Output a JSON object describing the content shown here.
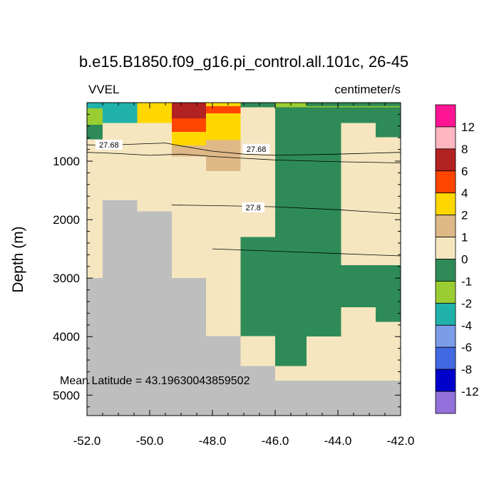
{
  "chart_data": {
    "type": "heatmap",
    "title": "b.e15.B1850.f09_g16.pi_control.all.101c, 26-45",
    "left_label": "VVEL",
    "units": "centimeter/s",
    "xlabel": "",
    "ylabel": "Depth (m)",
    "xlim": [
      -52.0,
      -42.0
    ],
    "ylim": [
      0,
      5350
    ],
    "x_ticks": [
      -52.0,
      -50.0,
      -48.0,
      -46.0,
      -44.0,
      -42.0
    ],
    "x_tick_labels": [
      "-52.0",
      "-50.0",
      "-48.0",
      "-46.0",
      "-44.0",
      "-42.0"
    ],
    "y_ticks": [
      1000,
      2000,
      3000,
      4000,
      5000
    ],
    "y_tick_labels": [
      "1000",
      "2000",
      "3000",
      "4000",
      "5000"
    ],
    "annotation": "Mean Latitude = 43.19630043859502",
    "colorbar": {
      "labels": [
        "12",
        "8",
        "6",
        "4",
        "2",
        "1",
        "0",
        "-1",
        "-2",
        "-4",
        "-6",
        "-8",
        "-12"
      ],
      "colors": [
        "#ff1493",
        "#ffb6c1",
        "#b22222",
        "#ff4500",
        "#ffd700",
        "#deb887",
        "#f5e6c0",
        "#2e8b57",
        "#9acd32",
        "#20b2aa",
        "#7b9ce8",
        "#4169e1",
        "#0000cd",
        "#9370db"
      ]
    },
    "class_colors": {
      "gt12": "#ff1493",
      "8to12": "#ffb6c1",
      "6to8": "#b22222",
      "4to6": "#ff4500",
      "2to4": "#ffd700",
      "1to2": "#deb887",
      "0to1": "#f5e6c0",
      "m1to0": "#2e8b57",
      "m2tom1": "#9acd32",
      "m4tom2": "#20b2aa",
      "land": "#bebebe"
    },
    "cells": [
      {
        "x0": -52.0,
        "x1": -42.0,
        "d0": 0,
        "d1": 5350,
        "c": "0to1"
      },
      {
        "x0": -52.0,
        "x1": -51.5,
        "d0": 0,
        "d1": 100,
        "c": "m4tom2"
      },
      {
        "x0": -52.0,
        "x1": -51.5,
        "d0": 100,
        "d1": 380,
        "c": "m2tom1"
      },
      {
        "x0": -52.0,
        "x1": -51.5,
        "d0": 380,
        "d1": 630,
        "c": "m1to0"
      },
      {
        "x0": -51.5,
        "x1": -50.4,
        "d0": 0,
        "d1": 350,
        "c": "m4tom2"
      },
      {
        "x0": -50.4,
        "x1": -49.3,
        "d0": 0,
        "d1": 350,
        "c": "2to4"
      },
      {
        "x0": -49.3,
        "x1": -48.2,
        "d0": 0,
        "d1": 270,
        "c": "6to8"
      },
      {
        "x0": -49.3,
        "x1": -48.2,
        "d0": 270,
        "d1": 500,
        "c": "4to6"
      },
      {
        "x0": -49.3,
        "x1": -48.2,
        "d0": 500,
        "d1": 730,
        "c": "2to4"
      },
      {
        "x0": -49.3,
        "x1": -48.2,
        "d0": 730,
        "d1": 920,
        "c": "1to2"
      },
      {
        "x0": -48.2,
        "x1": -47.1,
        "d0": 0,
        "d1": 60,
        "c": "2to4"
      },
      {
        "x0": -48.2,
        "x1": -47.1,
        "d0": 60,
        "d1": 180,
        "c": "4to6"
      },
      {
        "x0": -48.2,
        "x1": -47.1,
        "d0": 180,
        "d1": 640,
        "c": "2to4"
      },
      {
        "x0": -48.2,
        "x1": -47.1,
        "d0": 640,
        "d1": 1170,
        "c": "1to2"
      },
      {
        "x0": -47.1,
        "x1": -46.0,
        "d0": 0,
        "d1": 80,
        "c": "m1to0"
      },
      {
        "x0": -46.0,
        "x1": -45.0,
        "d0": 0,
        "d1": 80,
        "c": "m2tom1"
      },
      {
        "x0": -45.0,
        "x1": -42.0,
        "d0": 0,
        "d1": 60,
        "c": "m1to0"
      },
      {
        "x0": -45.0,
        "x1": -42.0,
        "d0": 60,
        "d1": 80,
        "c": "m2tom1"
      },
      {
        "x0": -46.0,
        "x1": -45.0,
        "d0": 80,
        "d1": 4500,
        "c": "m1to0"
      },
      {
        "x0": -45.0,
        "x1": -43.9,
        "d0": 80,
        "d1": 2300,
        "c": "m1to0"
      },
      {
        "x0": -43.9,
        "x1": -42.8,
        "d0": 80,
        "d1": 350,
        "c": "m1to0"
      },
      {
        "x0": -42.8,
        "x1": -42.0,
        "d0": 80,
        "d1": 590,
        "c": "m1to0"
      },
      {
        "x0": -47.1,
        "x1": -46.0,
        "d0": 2300,
        "d1": 3990,
        "c": "m1to0"
      },
      {
        "x0": -45.0,
        "x1": -43.9,
        "d0": 2300,
        "d1": 4000,
        "c": "m1to0"
      },
      {
        "x0": -43.9,
        "x1": -42.0,
        "d0": 2780,
        "d1": 3500,
        "c": "m1to0"
      },
      {
        "x0": -42.8,
        "x1": -42.0,
        "d0": 3500,
        "d1": 3750,
        "c": "m1to0"
      },
      {
        "x0": -52.0,
        "x1": -51.5,
        "d0": 3000,
        "d1": 5350,
        "c": "land"
      },
      {
        "x0": -51.5,
        "x1": -50.4,
        "d0": 1670,
        "d1": 5350,
        "c": "land"
      },
      {
        "x0": -50.4,
        "x1": -49.3,
        "d0": 1860,
        "d1": 5350,
        "c": "land"
      },
      {
        "x0": -49.3,
        "x1": -48.2,
        "d0": 3000,
        "d1": 5350,
        "c": "land"
      },
      {
        "x0": -48.2,
        "x1": -47.1,
        "d0": 3990,
        "d1": 5350,
        "c": "land"
      },
      {
        "x0": -47.1,
        "x1": -46.0,
        "d0": 4500,
        "d1": 5350,
        "c": "land"
      },
      {
        "x0": -46.0,
        "x1": -42.0,
        "d0": 4750,
        "d1": 5350,
        "c": "land"
      }
    ],
    "contours": [
      {
        "level": "27.68",
        "points": [
          [
            -52.0,
            720
          ],
          [
            -51.5,
            730
          ],
          [
            -50.0,
            700
          ],
          [
            -49.5,
            690
          ],
          [
            -49.0,
            740
          ],
          [
            -48.0,
            830
          ],
          [
            -47.0,
            880
          ],
          [
            -46.0,
            900
          ],
          [
            -44.0,
            880
          ],
          [
            -42.0,
            850
          ]
        ]
      },
      {
        "level": "",
        "points": [
          [
            -52.0,
            850
          ],
          [
            -51.0,
            870
          ],
          [
            -50.0,
            900
          ],
          [
            -49.0,
            880
          ],
          [
            -48.0,
            920
          ],
          [
            -47.0,
            950
          ],
          [
            -46.0,
            980
          ],
          [
            -44.0,
            1010
          ],
          [
            -42.0,
            1030
          ]
        ]
      },
      {
        "level": "27.8",
        "points": [
          [
            -49.3,
            1750
          ],
          [
            -48.0,
            1760
          ],
          [
            -46.0,
            1780
          ],
          [
            -44.0,
            1830
          ],
          [
            -42.0,
            1900
          ]
        ]
      },
      {
        "level": "",
        "points": [
          [
            -48.0,
            2500
          ],
          [
            -46.0,
            2540
          ],
          [
            -44.0,
            2580
          ],
          [
            -42.0,
            2620
          ]
        ]
      }
    ],
    "contour_labels": [
      {
        "text": "27.68",
        "x": -51.3,
        "d": 720
      },
      {
        "text": "27.68",
        "x": -46.6,
        "d": 790
      },
      {
        "text": "27.8",
        "x": -46.7,
        "d": 1790
      }
    ]
  }
}
